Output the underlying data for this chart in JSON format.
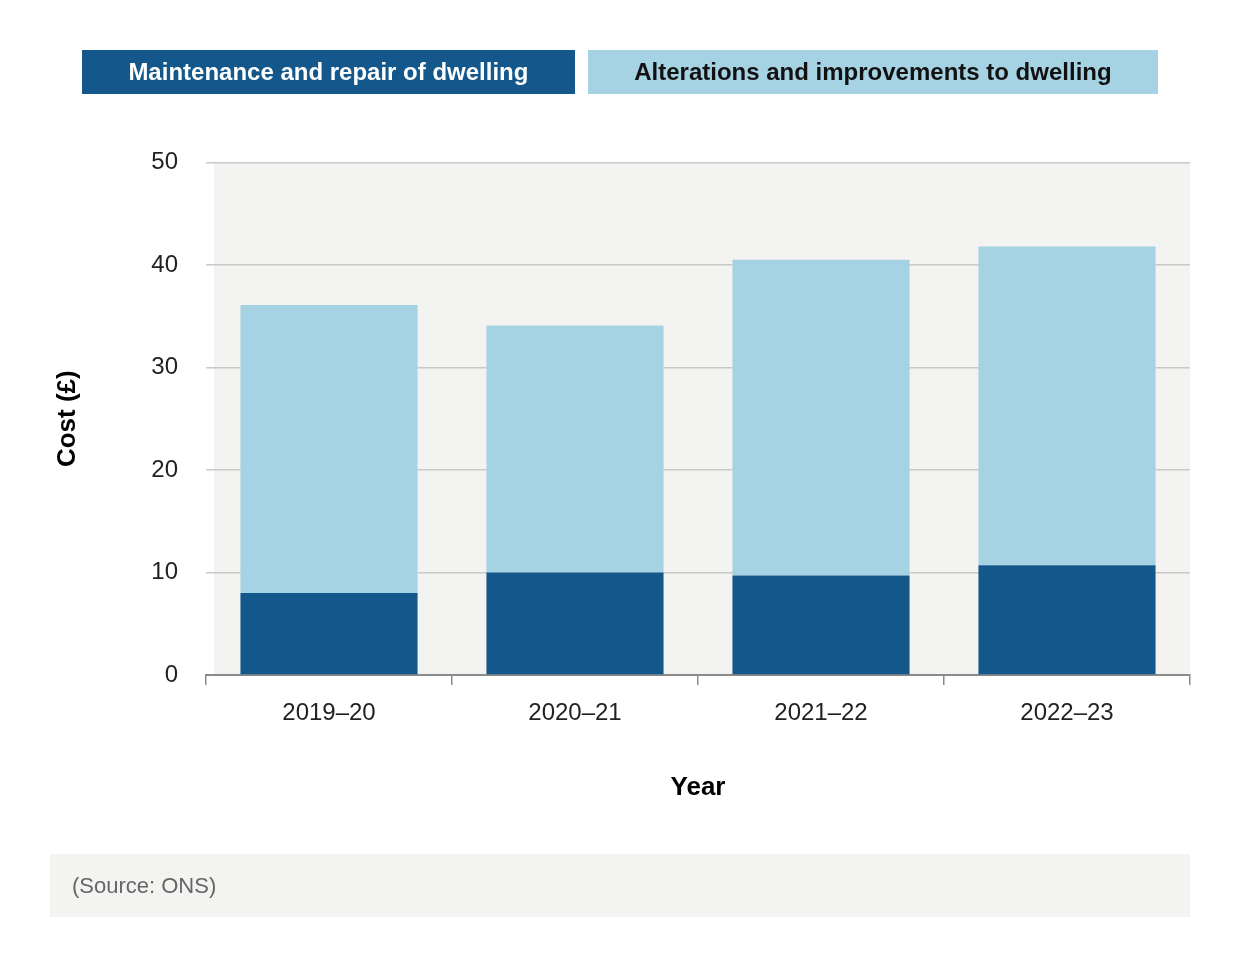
{
  "chart_data": {
    "type": "bar",
    "categories": [
      "2019–20",
      "2020–21",
      "2021–22",
      "2022–23"
    ],
    "series": [
      {
        "name": "Maintenance and repair of dwelling",
        "color": "#14588b",
        "values": [
          8.0,
          10.0,
          9.7,
          10.7
        ]
      },
      {
        "name": "Alterations and improvements to dwelling",
        "color": "#a6d3e3",
        "values": [
          28.1,
          24.1,
          30.8,
          31.1
        ]
      }
    ],
    "stacked": true,
    "xlabel": "Year",
    "ylabel": "Cost (£)",
    "ylim": [
      0,
      50
    ],
    "yticks": [
      0,
      10,
      20,
      30,
      40,
      50
    ],
    "grid": "y",
    "legend": "top",
    "annotations": [
      "(Source: ONS)"
    ]
  }
}
